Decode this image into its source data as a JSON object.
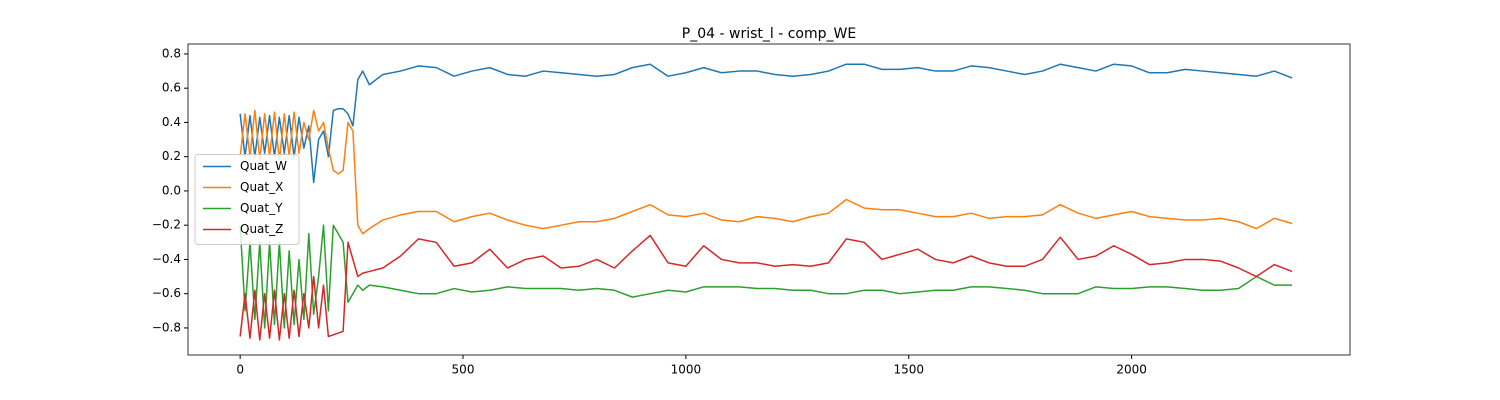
{
  "chart_data": {
    "type": "line",
    "title": "P_04 - wrist_l - comp_WE",
    "x": [
      0,
      11,
      22,
      33,
      44,
      55,
      66,
      77,
      88,
      99,
      110,
      121,
      132,
      143,
      154,
      165,
      176,
      187,
      198,
      209,
      220,
      231,
      242,
      253,
      264,
      275,
      290,
      320,
      360,
      400,
      440,
      480,
      520,
      560,
      600,
      640,
      680,
      720,
      760,
      800,
      840,
      880,
      920,
      960,
      1000,
      1040,
      1080,
      1120,
      1160,
      1200,
      1240,
      1280,
      1320,
      1360,
      1400,
      1440,
      1480,
      1520,
      1560,
      1600,
      1640,
      1680,
      1720,
      1760,
      1800,
      1840,
      1880,
      1920,
      1960,
      2000,
      2040,
      2080,
      2120,
      2160,
      2200,
      2240,
      2280,
      2320,
      2360
    ],
    "series": [
      {
        "name": "Quat_W",
        "color": "#1f77b4",
        "values": [
          0.45,
          0.2,
          0.44,
          0.2,
          0.43,
          0.22,
          0.44,
          0.2,
          0.43,
          0.22,
          0.44,
          0.2,
          0.43,
          0.25,
          0.38,
          0.05,
          0.3,
          0.35,
          0.2,
          0.47,
          0.48,
          0.48,
          0.45,
          0.38,
          0.65,
          0.7,
          0.62,
          0.68,
          0.7,
          0.73,
          0.72,
          0.67,
          0.7,
          0.72,
          0.68,
          0.67,
          0.7,
          0.69,
          0.68,
          0.67,
          0.68,
          0.72,
          0.74,
          0.67,
          0.69,
          0.72,
          0.69,
          0.7,
          0.7,
          0.68,
          0.67,
          0.68,
          0.7,
          0.74,
          0.74,
          0.71,
          0.71,
          0.72,
          0.7,
          0.7,
          0.73,
          0.72,
          0.7,
          0.68,
          0.7,
          0.74,
          0.72,
          0.7,
          0.74,
          0.73,
          0.69,
          0.69,
          0.71,
          0.7,
          0.69,
          0.68,
          0.67,
          0.7,
          0.66
        ]
      },
      {
        "name": "Quat_X",
        "color": "#ff7f0e",
        "values": [
          0.2,
          0.45,
          0.2,
          0.47,
          0.18,
          0.45,
          0.2,
          0.46,
          0.18,
          0.45,
          0.2,
          0.46,
          0.22,
          0.4,
          0.3,
          0.47,
          0.35,
          0.4,
          0.25,
          0.12,
          0.1,
          0.12,
          0.4,
          0.35,
          -0.2,
          -0.25,
          -0.22,
          -0.17,
          -0.14,
          -0.12,
          -0.12,
          -0.18,
          -0.15,
          -0.13,
          -0.17,
          -0.2,
          -0.22,
          -0.2,
          -0.18,
          -0.18,
          -0.16,
          -0.12,
          -0.08,
          -0.14,
          -0.15,
          -0.13,
          -0.17,
          -0.18,
          -0.15,
          -0.16,
          -0.18,
          -0.15,
          -0.13,
          -0.05,
          -0.1,
          -0.11,
          -0.11,
          -0.13,
          -0.15,
          -0.15,
          -0.13,
          -0.16,
          -0.15,
          -0.15,
          -0.14,
          -0.08,
          -0.13,
          -0.16,
          -0.14,
          -0.12,
          -0.15,
          -0.16,
          -0.17,
          -0.17,
          -0.16,
          -0.18,
          -0.22,
          -0.16,
          -0.19
        ]
      },
      {
        "name": "Quat_Y",
        "color": "#2ca02c",
        "values": [
          -0.2,
          -0.7,
          -0.3,
          -0.75,
          -0.3,
          -0.8,
          -0.3,
          -0.78,
          -0.3,
          -0.8,
          -0.35,
          -0.78,
          -0.4,
          -0.75,
          -0.25,
          -0.72,
          -0.5,
          -0.2,
          -0.7,
          -0.2,
          -0.25,
          -0.3,
          -0.65,
          -0.6,
          -0.55,
          -0.58,
          -0.55,
          -0.56,
          -0.58,
          -0.6,
          -0.6,
          -0.57,
          -0.59,
          -0.58,
          -0.56,
          -0.57,
          -0.57,
          -0.57,
          -0.58,
          -0.57,
          -0.58,
          -0.62,
          -0.6,
          -0.58,
          -0.59,
          -0.56,
          -0.56,
          -0.56,
          -0.57,
          -0.57,
          -0.58,
          -0.58,
          -0.6,
          -0.6,
          -0.58,
          -0.58,
          -0.6,
          -0.59,
          -0.58,
          -0.58,
          -0.56,
          -0.56,
          -0.57,
          -0.58,
          -0.6,
          -0.6,
          -0.6,
          -0.56,
          -0.57,
          -0.57,
          -0.56,
          -0.56,
          -0.57,
          -0.58,
          -0.58,
          -0.57,
          -0.5,
          -0.55,
          -0.55
        ]
      },
      {
        "name": "Quat_Z",
        "color": "#d62728",
        "values": [
          -0.85,
          -0.6,
          -0.86,
          -0.58,
          -0.87,
          -0.6,
          -0.86,
          -0.58,
          -0.87,
          -0.6,
          -0.86,
          -0.58,
          -0.85,
          -0.6,
          -0.8,
          -0.5,
          -0.8,
          -0.55,
          -0.85,
          -0.84,
          -0.83,
          -0.82,
          -0.3,
          -0.4,
          -0.5,
          -0.48,
          -0.47,
          -0.45,
          -0.38,
          -0.28,
          -0.3,
          -0.44,
          -0.42,
          -0.34,
          -0.45,
          -0.4,
          -0.38,
          -0.45,
          -0.44,
          -0.4,
          -0.45,
          -0.35,
          -0.26,
          -0.42,
          -0.44,
          -0.32,
          -0.4,
          -0.42,
          -0.42,
          -0.44,
          -0.43,
          -0.44,
          -0.42,
          -0.28,
          -0.3,
          -0.4,
          -0.37,
          -0.34,
          -0.4,
          -0.42,
          -0.38,
          -0.42,
          -0.44,
          -0.44,
          -0.4,
          -0.27,
          -0.4,
          -0.38,
          -0.32,
          -0.37,
          -0.43,
          -0.42,
          -0.4,
          -0.4,
          -0.41,
          -0.45,
          -0.5,
          -0.43,
          -0.47
        ]
      }
    ],
    "xlim": [
      -117,
      2490
    ],
    "ylim": [
      -0.958,
      0.858
    ],
    "xticks": [
      0,
      500,
      1000,
      1500,
      2000
    ],
    "yticks": [
      {
        "value": -0.8,
        "label": "−0.8"
      },
      {
        "value": -0.6,
        "label": "−0.6"
      },
      {
        "value": -0.4,
        "label": "−0.4"
      },
      {
        "value": -0.2,
        "label": "−0.2"
      },
      {
        "value": 0,
        "label": "0.0"
      },
      0.2,
      0.4,
      0.6,
      0.8
    ],
    "legend": "center left",
    "grid": false
  }
}
